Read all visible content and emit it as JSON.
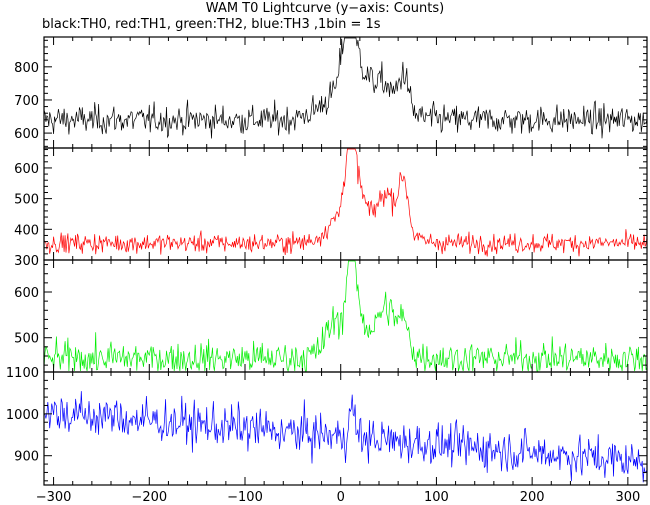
{
  "chart_data": {
    "type": "line",
    "title": "WAM T0 Lightcurve (y−axis: Counts)",
    "subtitle": "black:TH0, red:TH1, green:TH2, blue:TH3 ,1bin = 1s",
    "x_ticks": [
      -300,
      -200,
      -100,
      0,
      100,
      200,
      300
    ],
    "xlim": [
      -310,
      320
    ],
    "bin_seconds": 1,
    "panels": [
      {
        "id": "TH0",
        "color": "#000000",
        "ylim": [
          555,
          890
        ],
        "y_ticks": [
          600,
          700,
          800
        ],
        "baseline": 640,
        "noise": 22,
        "peaks": [
          {
            "t": 8,
            "height": 190,
            "width": 6
          },
          {
            "t": 18,
            "height": 90,
            "width": 10
          },
          {
            "t": 0,
            "height": 60,
            "width": 20
          },
          {
            "t": 45,
            "height": 70,
            "width": 10
          },
          {
            "t": 66,
            "height": 115,
            "width": 5
          },
          {
            "t": 30,
            "height": 40,
            "width": 30
          }
        ]
      },
      {
        "id": "TH1",
        "color": "#ff0000",
        "ylim": [
          300,
          665
        ],
        "y_ticks": [
          300,
          400,
          500,
          600
        ],
        "baseline": 355,
        "noise": 16,
        "peaks": [
          {
            "t": 10,
            "height": 250,
            "width": 5
          },
          {
            "t": 18,
            "height": 120,
            "width": 8
          },
          {
            "t": -2,
            "height": 60,
            "width": 12
          },
          {
            "t": 48,
            "height": 130,
            "width": 10
          },
          {
            "t": 66,
            "height": 170,
            "width": 5
          },
          {
            "t": 30,
            "height": 40,
            "width": 30
          }
        ]
      },
      {
        "id": "TH2",
        "color": "#00ee00",
        "ylim": [
          425,
          670
        ],
        "y_ticks": [
          500,
          600
        ],
        "baseline": 455,
        "noise": 18,
        "peaks": [
          {
            "t": 11,
            "height": 200,
            "width": 4
          },
          {
            "t": 18,
            "height": 70,
            "width": 8
          },
          {
            "t": -5,
            "height": 70,
            "width": 10
          },
          {
            "t": 48,
            "height": 90,
            "width": 10
          },
          {
            "t": 66,
            "height": 55,
            "width": 5
          },
          {
            "t": 30,
            "height": 25,
            "width": 30
          }
        ]
      },
      {
        "id": "TH3",
        "color": "#0000ff",
        "ylim": [
          830,
          1100
        ],
        "y_ticks": [
          900,
          1000,
          1100
        ],
        "baseline_start": 1005,
        "baseline_end": 885,
        "noise": 26,
        "peaks": [
          {
            "t": 12,
            "height": 70,
            "width": 3
          }
        ]
      }
    ],
    "grid": false,
    "legend": "none"
  }
}
